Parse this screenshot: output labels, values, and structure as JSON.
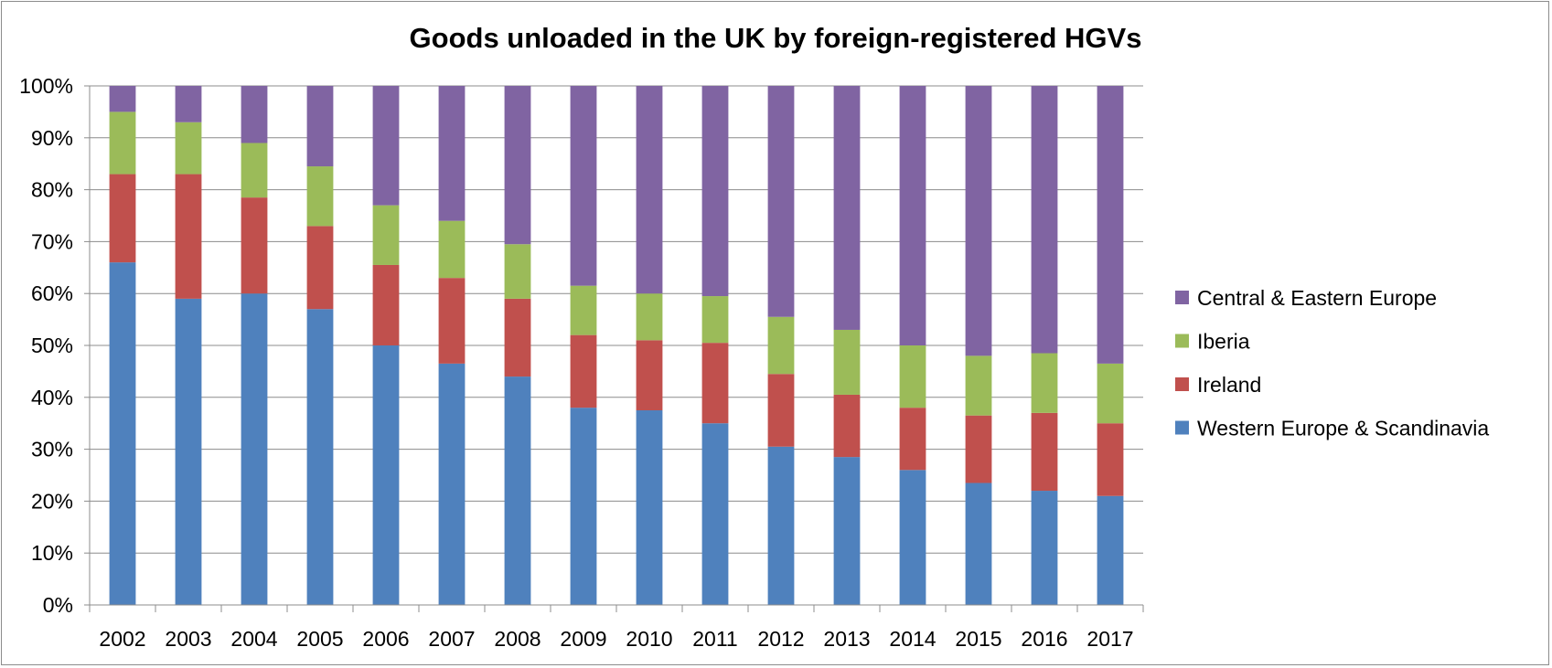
{
  "chart_data": {
    "type": "bar",
    "stacked": true,
    "percent_stacked": true,
    "title": "Goods unloaded in the UK by foreign-registered HGVs",
    "xlabel": "",
    "ylabel": "",
    "categories": [
      "2002",
      "2003",
      "2004",
      "2005",
      "2006",
      "2007",
      "2008",
      "2009",
      "2010",
      "2011",
      "2012",
      "2013",
      "2014",
      "2015",
      "2016",
      "2017"
    ],
    "ylim": [
      0,
      100
    ],
    "y_ticks": [
      0,
      10,
      20,
      30,
      40,
      50,
      60,
      70,
      80,
      90,
      100
    ],
    "y_tick_labels": [
      "0%",
      "10%",
      "20%",
      "30%",
      "40%",
      "50%",
      "60%",
      "70%",
      "80%",
      "90%",
      "100%"
    ],
    "grid": true,
    "legend_position": "right",
    "series": [
      {
        "name": "Western Europe & Scandinavia",
        "color": "#4f81bd",
        "values": [
          66,
          59,
          60,
          57,
          50,
          46.5,
          44,
          38,
          37.5,
          35,
          30.5,
          28.5,
          26,
          23.5,
          22,
          21
        ]
      },
      {
        "name": "Ireland",
        "color": "#c0504d",
        "values": [
          17,
          24,
          18.5,
          16,
          15.5,
          16.5,
          15,
          14,
          13.5,
          15.5,
          14,
          12,
          12,
          13,
          15,
          14
        ]
      },
      {
        "name": "Iberia",
        "color": "#9bbb59",
        "values": [
          12,
          10,
          10.5,
          11.5,
          11.5,
          11,
          10.5,
          9.5,
          9,
          9,
          11,
          12.5,
          12,
          11.5,
          11.5,
          11.5
        ]
      },
      {
        "name": "Central & Eastern Europe",
        "color": "#8064a2",
        "values": [
          5,
          7,
          11,
          15.5,
          23,
          26,
          30.5,
          38.5,
          40,
          40.5,
          44.5,
          47,
          50,
          52,
          51.5,
          53.5
        ]
      }
    ],
    "legend_order": [
      "Central & Eastern Europe",
      "Iberia",
      "Ireland",
      "Western Europe & Scandinavia"
    ]
  }
}
